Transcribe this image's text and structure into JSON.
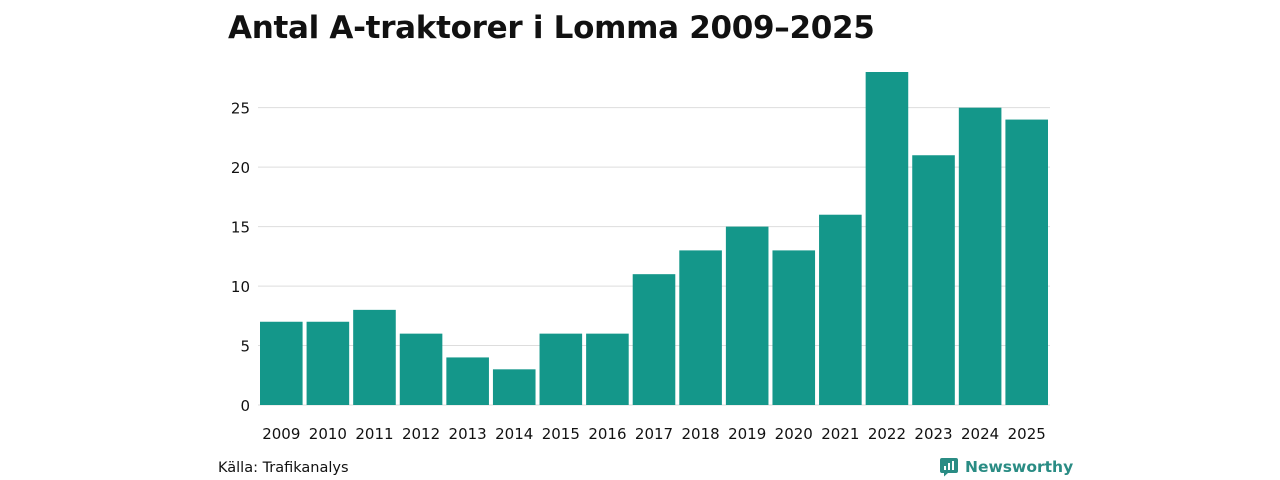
{
  "chart_data": {
    "type": "bar",
    "title": "Antal A-traktorer i Lomma 2009–2025",
    "xlabel": "",
    "ylabel": "",
    "categories": [
      "2009",
      "2010",
      "2011",
      "2012",
      "2013",
      "2014",
      "2015",
      "2016",
      "2017",
      "2018",
      "2019",
      "2020",
      "2021",
      "2022",
      "2023",
      "2024",
      "2025"
    ],
    "values": [
      7,
      7,
      8,
      6,
      4,
      3,
      6,
      6,
      11,
      13,
      15,
      13,
      16,
      28,
      21,
      25,
      24
    ],
    "ylim": [
      0,
      28
    ],
    "yticks": [
      0,
      5,
      10,
      15,
      20,
      25
    ],
    "grid": true,
    "bar_color": "#14978a",
    "grid_color": "#dddddd"
  },
  "source": {
    "text": "Källa: Trafikanalys"
  },
  "brand": {
    "name": "Newsworthy",
    "icon": "newsworthy-logo-icon",
    "color": "#2a8c84"
  }
}
